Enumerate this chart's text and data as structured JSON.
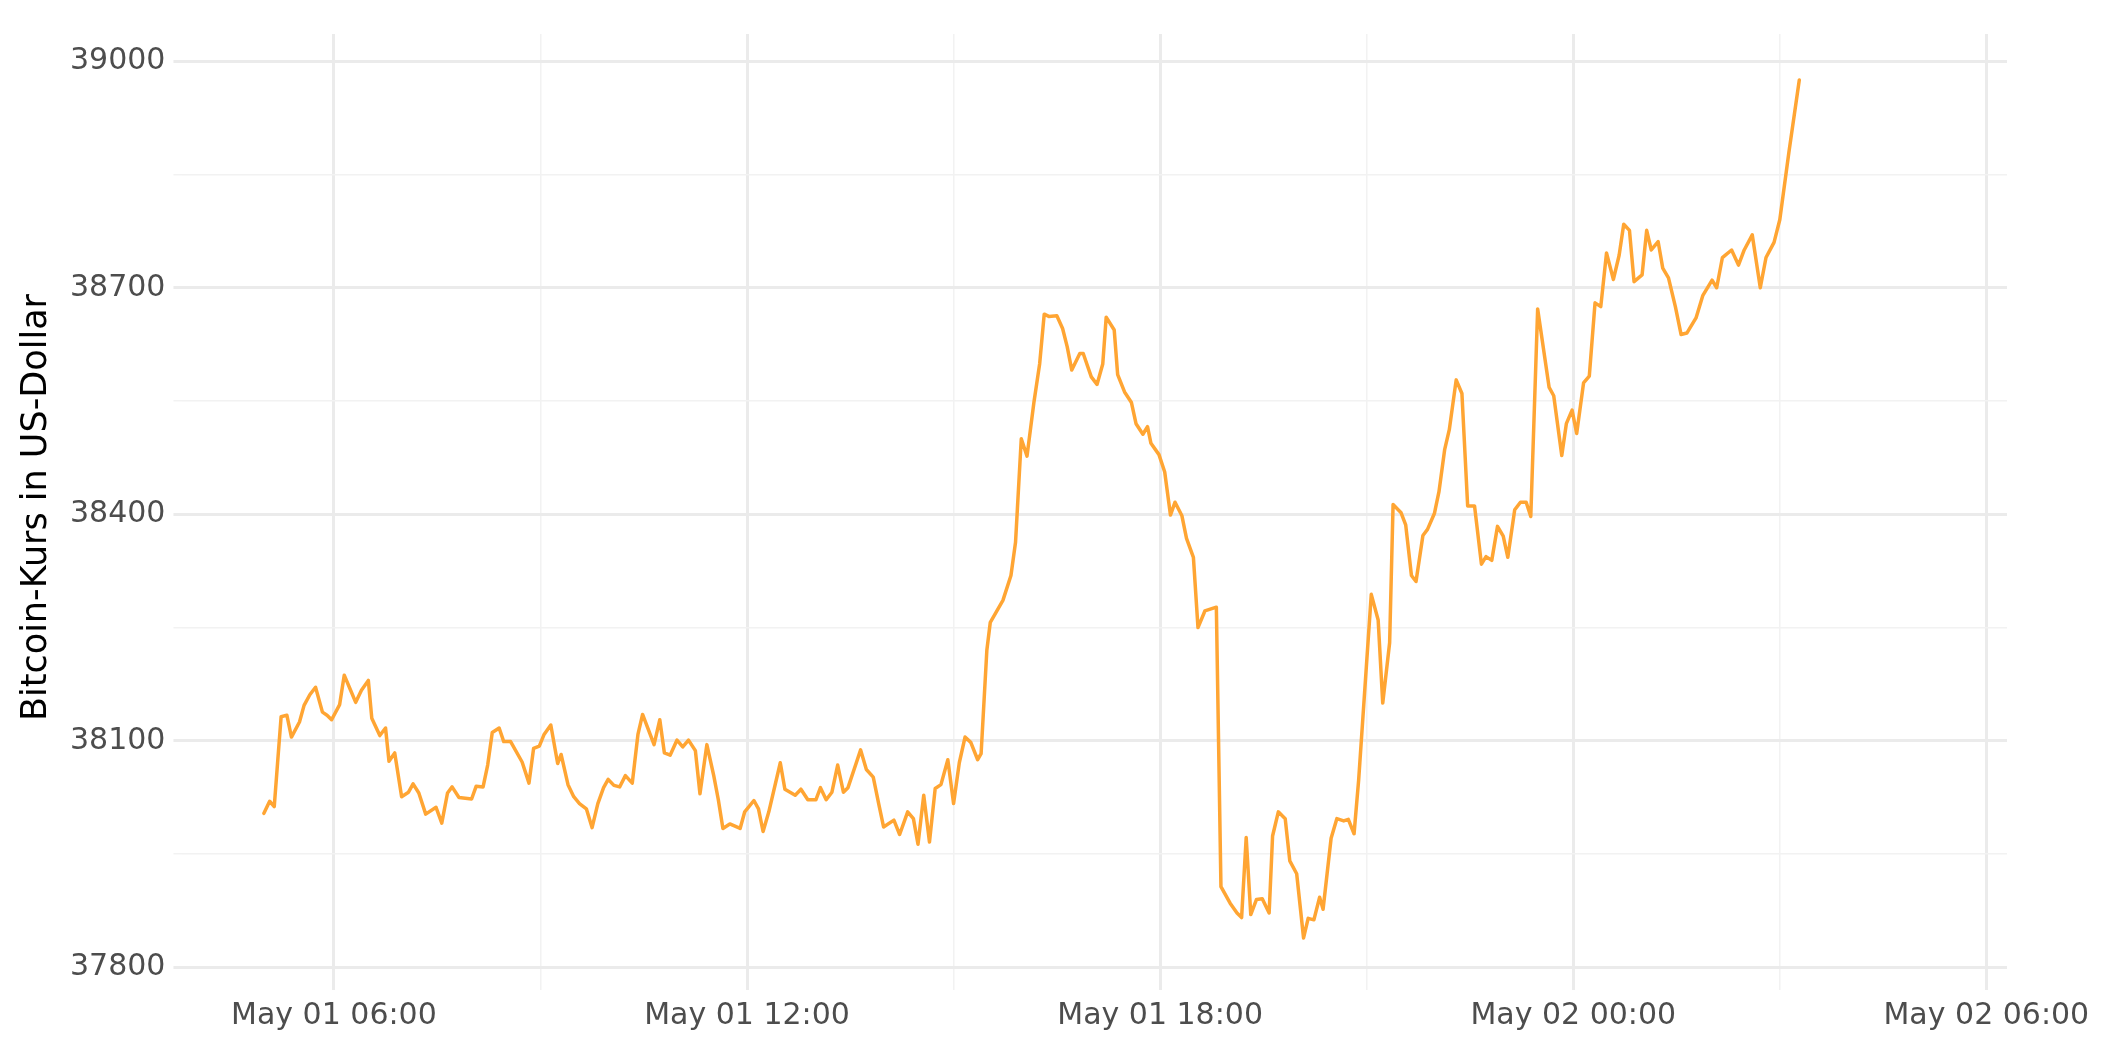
{
  "chart_data": {
    "type": "line",
    "ylabel": "Bitcoin-Kurs in US-Dollar",
    "grid": true,
    "x": [
      "--05-01T04:59",
      "--05-01T05:04",
      "--05-01T05:08",
      "--05-01T05:14",
      "--05-01T05:19",
      "--05-01T05:23",
      "--05-01T05:30",
      "--05-01T05:34",
      "--05-01T05:39",
      "--05-01T05:44",
      "--05-01T05:50",
      "--05-01T05:54",
      "--05-01T05:58",
      "--05-01T06:05",
      "--05-01T06:09",
      "--05-01T06:14",
      "--05-01T06:19",
      "--05-01T06:24",
      "--05-01T06:30",
      "--05-01T06:33",
      "--05-01T06:40",
      "--05-01T06:45",
      "--05-01T06:48",
      "--05-01T06:53",
      "--05-01T06:59",
      "--05-01T07:05",
      "--05-01T07:09",
      "--05-01T07:14",
      "--05-01T07:20",
      "--05-01T07:29",
      "--05-01T07:34",
      "--05-01T07:39",
      "--05-01T07:43",
      "--05-01T07:49",
      "--05-01T08:00",
      "--05-01T08:04",
      "--05-01T08:10",
      "--05-01T08:14",
      "--05-01T08:18",
      "--05-01T08:24",
      "--05-01T08:28",
      "--05-01T08:34",
      "--05-01T08:44",
      "--05-01T08:50",
      "--05-01T08:54",
      "--05-01T08:59",
      "--05-01T09:03",
      "--05-01T09:09",
      "--05-01T09:15",
      "--05-01T09:18",
      "--05-01T09:24",
      "--05-01T09:29",
      "--05-01T09:34",
      "--05-01T09:40",
      "--05-01T09:45",
      "--05-01T09:50",
      "--05-01T09:55",
      "--05-01T09:59",
      "--05-01T10:04",
      "--05-01T10:09",
      "--05-01T10:14",
      "--05-01T10:20",
      "--05-01T10:25",
      "--05-01T10:29",
      "--05-01T10:39",
      "--05-01T10:44",
      "--05-01T10:48",
      "--05-01T10:53",
      "--05-01T10:59",
      "--05-01T11:04",
      "--05-01T11:09",
      "--05-01T11:15",
      "--05-01T11:19",
      "--05-01T11:25",
      "--05-01T11:31",
      "--05-01T11:35",
      "--05-01T11:39",
      "--05-01T11:45",
      "--05-01T11:54",
      "--05-01T11:58",
      "--05-01T12:06",
      "--05-01T12:10",
      "--05-01T12:14",
      "--05-01T12:19",
      "--05-01T12:29",
      "--05-01T12:33",
      "--05-01T12:42",
      "--05-01T12:47",
      "--05-01T12:53",
      "--05-01T13:00",
      "--05-01T13:04",
      "--05-01T13:09",
      "--05-01T13:14",
      "--05-01T13:19",
      "--05-01T13:24",
      "--05-01T13:28",
      "--05-01T13:39",
      "--05-01T13:44",
      "--05-01T13:50",
      "--05-01T13:55",
      "--05-01T13:59",
      "--05-01T14:08",
      "--05-01T14:13",
      "--05-01T14:20",
      "--05-01T14:25",
      "--05-01T14:29",
      "--05-01T14:34",
      "--05-01T14:39",
      "--05-01T14:44",
      "--05-01T14:49",
      "--05-01T14:55",
      "--05-01T15:00",
      "--05-01T15:05",
      "--05-01T15:10",
      "--05-01T15:15",
      "--05-01T15:21",
      "--05-01T15:24",
      "--05-01T15:29",
      "--05-01T15:32",
      "--05-01T15:43",
      "--05-01T15:50",
      "--05-01T15:54",
      "--05-01T15:59",
      "--05-01T16:04",
      "--05-01T16:10",
      "--05-01T16:15",
      "--05-01T16:19",
      "--05-01T16:23",
      "--05-01T16:30",
      "--05-01T16:35",
      "--05-01T16:39",
      "--05-01T16:43",
      "--05-01T16:50",
      "--05-01T16:53",
      "--05-01T17:00",
      "--05-01T17:05",
      "--05-01T17:10",
      "--05-01T17:13",
      "--05-01T17:20",
      "--05-01T17:23",
      "--05-01T17:29",
      "--05-01T17:35",
      "--05-01T17:39",
      "--05-01T17:45",
      "--05-01T17:49",
      "--05-01T17:52",
      "--05-01T17:59",
      "--05-01T18:04",
      "--05-01T18:09",
      "--05-01T18:13",
      "--05-01T18:19",
      "--05-01T18:23",
      "--05-01T18:29",
      "--05-01T18:33",
      "--05-01T18:39",
      "--05-01T18:49",
      "--05-01T18:53",
      "--05-01T19:01",
      "--05-01T19:07",
      "--05-01T19:11",
      "--05-01T19:15",
      "--05-01T19:19",
      "--05-01T19:24",
      "--05-01T19:29",
      "--05-01T19:35",
      "--05-01T19:38",
      "--05-01T19:43",
      "--05-01T19:49",
      "--05-01T19:53",
      "--05-01T19:59",
      "--05-01T20:05",
      "--05-01T20:09",
      "--05-01T20:14",
      "--05-01T20:19",
      "--05-01T20:22",
      "--05-01T20:29",
      "--05-01T20:34",
      "--05-01T20:40",
      "--05-01T20:44",
      "--05-01T20:49",
      "--05-01T20:53",
      "--05-01T21:04",
      "--05-01T21:10",
      "--05-01T21:14",
      "--05-01T21:20",
      "--05-01T21:23",
      "--05-01T21:30",
      "--05-01T21:34",
      "--05-01T21:39",
      "--05-01T21:43",
      "--05-01T21:49",
      "--05-01T21:53",
      "--05-01T21:59",
      "--05-01T22:03",
      "--05-01T22:08",
      "--05-01T22:12",
      "--05-01T22:18",
      "--05-01T22:23",
      "--05-01T22:28",
      "--05-01T22:34",
      "--05-01T22:40",
      "--05-01T22:44",
      "--05-01T22:49",
      "--05-01T22:54",
      "--05-01T22:59",
      "--05-01T23:03",
      "--05-01T23:09",
      "--05-01T23:14",
      "--05-01T23:19",
      "--05-01T23:23",
      "--05-01T23:29",
      "--05-01T23:39",
      "--05-01T23:43",
      "--05-01T23:50",
      "--05-01T23:54",
      "--05-01T23:59",
      "--05-02T00:03",
      "--05-02T00:09",
      "--05-02T00:14",
      "--05-02T00:19",
      "--05-02T00:24",
      "--05-02T00:29",
      "--05-02T00:35",
      "--05-02T00:40",
      "--05-02T00:44",
      "--05-02T00:49",
      "--05-02T00:53",
      "--05-02T01:00",
      "--05-02T01:04",
      "--05-02T01:08",
      "--05-02T01:14",
      "--05-02T01:18",
      "--05-02T01:23",
      "--05-02T01:29",
      "--05-02T01:34",
      "--05-02T01:39",
      "--05-02T01:47",
      "--05-02T01:53",
      "--05-02T02:01",
      "--05-02T02:05",
      "--05-02T02:10",
      "--05-02T02:18",
      "--05-02T02:24",
      "--05-02T02:29",
      "--05-02T02:36",
      "--05-02T02:43",
      "--05-02T02:48",
      "--05-02T02:55",
      "--05-02T03:00",
      "--05-02T03:08",
      "--05-02T03:17"
    ],
    "series": [
      {
        "color": "#ffa533",
        "values": [
          38004,
          38020,
          38013,
          38132,
          38134,
          38105,
          38125,
          38147,
          38161,
          38171,
          38138,
          38134,
          38128,
          38148,
          38187,
          38169,
          38151,
          38167,
          38180,
          38130,
          38107,
          38117,
          38073,
          38084,
          38026,
          38032,
          38043,
          38031,
          38003,
          38012,
          37991,
          38031,
          38039,
          38025,
          38023,
          38040,
          38039,
          38068,
          38111,
          38117,
          38099,
          38099,
          38072,
          38044,
          38090,
          38093,
          38108,
          38121,
          38070,
          38082,
          38042,
          38026,
          38017,
          38010,
          37985,
          38017,
          38038,
          38049,
          38041,
          38039,
          38054,
          38044,
          38109,
          38135,
          38095,
          38128,
          38084,
          38081,
          38101,
          38092,
          38101,
          38087,
          38030,
          38095,
          38054,
          38022,
          37984,
          37990,
          37984,
          38006,
          38021,
          38010,
          37980,
          38006,
          38071,
          38036,
          38028,
          38036,
          38022,
          38022,
          38038,
          38022,
          38032,
          38068,
          38032,
          38038,
          38088,
          38062,
          38052,
          38015,
          37986,
          37995,
          37976,
          38006,
          37997,
          37963,
          38028,
          37966,
          38037,
          38042,
          38075,
          38017,
          38071,
          38105,
          38098,
          38075,
          38083,
          38220,
          38257,
          38286,
          38319,
          38363,
          38500,
          38477,
          38548,
          38599,
          38665,
          38662,
          38663,
          38646,
          38622,
          38591,
          38613,
          38613,
          38582,
          38572,
          38599,
          38661,
          38644,
          38585,
          38562,
          38548,
          38520,
          38506,
          38516,
          38494,
          38479,
          38456,
          38399,
          38416,
          38398,
          38368,
          38343,
          38250,
          38272,
          38277,
          37907,
          37885,
          37872,
          37866,
          37972,
          37870,
          37890,
          37891,
          37872,
          37974,
          38006,
          37997,
          37941,
          37924,
          37839,
          37865,
          37863,
          37893,
          37877,
          37971,
          37997,
          37994,
          37996,
          37977,
          38048,
          38294,
          38260,
          38150,
          38230,
          38413,
          38402,
          38386,
          38319,
          38311,
          38372,
          38380,
          38401,
          38430,
          38486,
          38512,
          38578,
          38560,
          38411,
          38411,
          38334,
          38344,
          38339,
          38384,
          38371,
          38343,
          38406,
          38416,
          38416,
          38397,
          38672,
          38568,
          38557,
          38478,
          38520,
          38538,
          38507,
          38574,
          38583,
          38680,
          38675,
          38746,
          38711,
          38743,
          38784,
          38776,
          38708,
          38717,
          38776,
          38750,
          38761,
          38726,
          38713,
          38675,
          38638,
          38640,
          38660,
          38690,
          38710,
          38700,
          38740,
          38750,
          38730,
          38750,
          38770,
          38700,
          38740,
          38760,
          38790,
          38880,
          38975
        ]
      }
    ],
    "xlim": [
      "--05-01T03:48",
      "--05-02T06:18"
    ],
    "xticks": [
      {
        "value": "--05-01T06:00",
        "label": "May 01 06:00"
      },
      {
        "value": "--05-01T09:00",
        "label": null
      },
      {
        "value": "--05-01T12:00",
        "label": "May 01 12:00"
      },
      {
        "value": "--05-01T15:00",
        "label": null
      },
      {
        "value": "--05-01T18:00",
        "label": "May 01 18:00"
      },
      {
        "value": "--05-01T21:00",
        "label": null
      },
      {
        "value": "--05-02T00:00",
        "label": "May 02 00:00"
      },
      {
        "value": "--05-02T03:00",
        "label": null
      },
      {
        "value": "--05-02T06:00",
        "label": "May 02 06:00"
      }
    ],
    "ylim": [
      37782,
      39036
    ],
    "yticks": [
      37800,
      {
        "value": 37950,
        "label": null
      },
      38100,
      {
        "value": 38250,
        "label": null
      },
      38400,
      {
        "value": 38550,
        "label": null
      },
      38700,
      {
        "value": 38850,
        "label": null
      },
      39000
    ]
  }
}
